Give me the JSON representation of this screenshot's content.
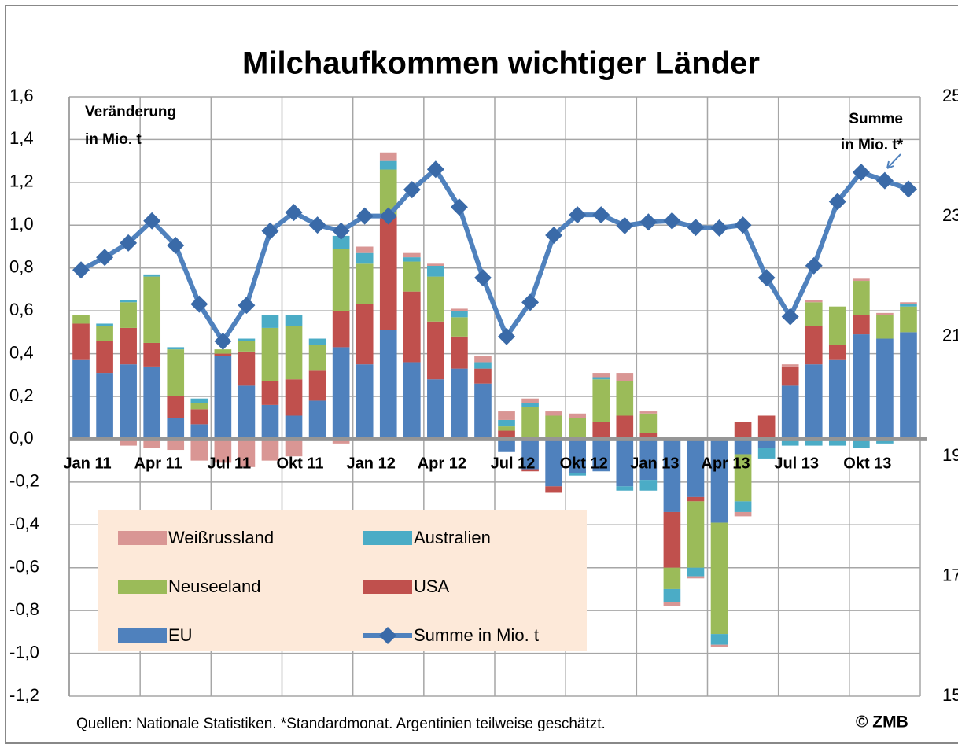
{
  "chart_data": {
    "type": "bar",
    "title": "Milchaufkommen wichtiger Länder",
    "annotations": [
      "Veränderung",
      "in Mio. t",
      "Summe",
      "in Mio. t*"
    ],
    "source": "Quellen: Nationale Statistiken. *Standardmonat. Argentinien teilweise geschätzt.",
    "copyright": "© ZMB",
    "stacked": true,
    "grid": true,
    "categories": [
      "Jan 11",
      null,
      null,
      "Apr 11",
      null,
      null,
      "Jul 11",
      null,
      null,
      "Okt 11",
      null,
      null,
      "Jan 12",
      null,
      null,
      "Apr 12",
      null,
      null,
      "Jul 12",
      null,
      null,
      "Okt 12",
      null,
      null,
      "Jan 13",
      null,
      null,
      "Apr 13",
      null,
      null,
      "Jul 13",
      null,
      null,
      "Okt 13",
      null,
      null
    ],
    "ylim": [
      -1.2,
      1.6
    ],
    "yticks": [
      {
        "value": -1.2,
        "label": "-1,2"
      },
      {
        "value": -1.0,
        "label": "-1,0"
      },
      {
        "value": -0.8,
        "label": "-0,8"
      },
      {
        "value": -0.6,
        "label": "-0,6"
      },
      {
        "value": -0.4,
        "label": "-0,4"
      },
      {
        "value": -0.2,
        "label": "-0,2"
      },
      {
        "value": 0,
        "label": "0,0"
      },
      {
        "value": 0.2,
        "label": "0,2"
      },
      {
        "value": 0.4,
        "label": "0,4"
      },
      {
        "value": 0.6,
        "label": "0,6"
      },
      {
        "value": 0.8,
        "label": "0,8"
      },
      {
        "value": 1.0,
        "label": "1,0"
      },
      {
        "value": 1.2,
        "label": "1,2"
      },
      {
        "value": 1.4,
        "label": "1,4"
      },
      {
        "value": 1.6,
        "label": "1,6"
      }
    ],
    "y2lim": [
      15,
      25
    ],
    "y2ticks": [
      15,
      17,
      19,
      21,
      23,
      25
    ],
    "series": [
      {
        "name": "EU",
        "color": "#4f81bd",
        "values": [
          0.37,
          0.31,
          0.35,
          0.34,
          0.1,
          0.07,
          0.39,
          0.25,
          0.16,
          0.11,
          0.18,
          0.43,
          0.35,
          0.51,
          0.36,
          0.28,
          0.33,
          0.26,
          -0.06,
          -0.14,
          -0.22,
          -0.16,
          -0.15,
          -0.22,
          -0.19,
          -0.34,
          -0.27,
          -0.39,
          -0.07,
          -0.04,
          0.25,
          0.35,
          0.37,
          0.49,
          0.47,
          0.5
        ]
      },
      {
        "name": "USA",
        "color": "#c0504d",
        "values": [
          0.17,
          0.15,
          0.17,
          0.11,
          0.1,
          0.07,
          0.01,
          0.16,
          0.11,
          0.17,
          0.14,
          0.17,
          0.28,
          0.53,
          0.33,
          0.27,
          0.15,
          0.07,
          0.04,
          -0.01,
          -0.03,
          0,
          0.08,
          0.11,
          0.03,
          -0.26,
          -0.02,
          0,
          0.08,
          0.11,
          0.09,
          0.18,
          0.07,
          0.09,
          0,
          0
        ]
      },
      {
        "name": "Neuseeland",
        "color": "#9bbb59",
        "values": [
          0.04,
          0.07,
          0.12,
          0.31,
          0.22,
          0.03,
          0.02,
          0.05,
          0.25,
          0.25,
          0.12,
          0.29,
          0.19,
          0.22,
          0.14,
          0.21,
          0.09,
          0,
          0.02,
          0.15,
          0.11,
          0.1,
          0.2,
          0.16,
          0.09,
          -0.1,
          -0.31,
          -0.52,
          -0.22,
          0,
          0,
          0.11,
          0.18,
          0.16,
          0.11,
          0.12
        ]
      },
      {
        "name": "Australien",
        "color": "#4bacc6",
        "values": [
          0,
          0.01,
          0.01,
          0.01,
          0.01,
          0.02,
          0,
          0.01,
          0.06,
          0.05,
          0.03,
          0.06,
          0.05,
          0.04,
          0.02,
          0.05,
          0.03,
          0.03,
          0.03,
          0.02,
          0,
          -0.01,
          0.01,
          -0.02,
          -0.05,
          -0.06,
          -0.04,
          -0.05,
          -0.05,
          -0.05,
          -0.03,
          -0.03,
          -0.03,
          -0.04,
          -0.02,
          0.01
        ]
      },
      {
        "name": "Weißrussland",
        "color": "#d99694",
        "values": [
          0,
          0,
          -0.03,
          -0.04,
          -0.05,
          -0.1,
          -0.11,
          -0.13,
          -0.1,
          -0.08,
          0,
          -0.02,
          0.03,
          0.04,
          0.02,
          0.01,
          0.01,
          0.03,
          0.04,
          0.02,
          0.02,
          0.02,
          0.02,
          0.04,
          0.01,
          -0.02,
          -0.01,
          -0.01,
          -0.02,
          0,
          0.01,
          0.01,
          0,
          0.01,
          0.01,
          0.01
        ]
      },
      {
        "name": "Summe in Mio. t",
        "type": "line",
        "axis": "y2",
        "color": "#4f81bd",
        "marker_color": "#3a6aa8",
        "values": [
          22.11,
          22.32,
          22.56,
          22.93,
          22.52,
          21.54,
          20.92,
          21.52,
          22.76,
          23.07,
          22.86,
          22.76,
          23.01,
          23.01,
          23.45,
          23.79,
          23.16,
          21.98,
          21.0,
          21.57,
          22.69,
          23.03,
          23.03,
          22.85,
          22.91,
          22.93,
          22.82,
          22.81,
          22.86,
          21.98,
          21.33,
          22.18,
          23.25,
          23.74,
          23.6,
          23.46
        ]
      }
    ]
  }
}
